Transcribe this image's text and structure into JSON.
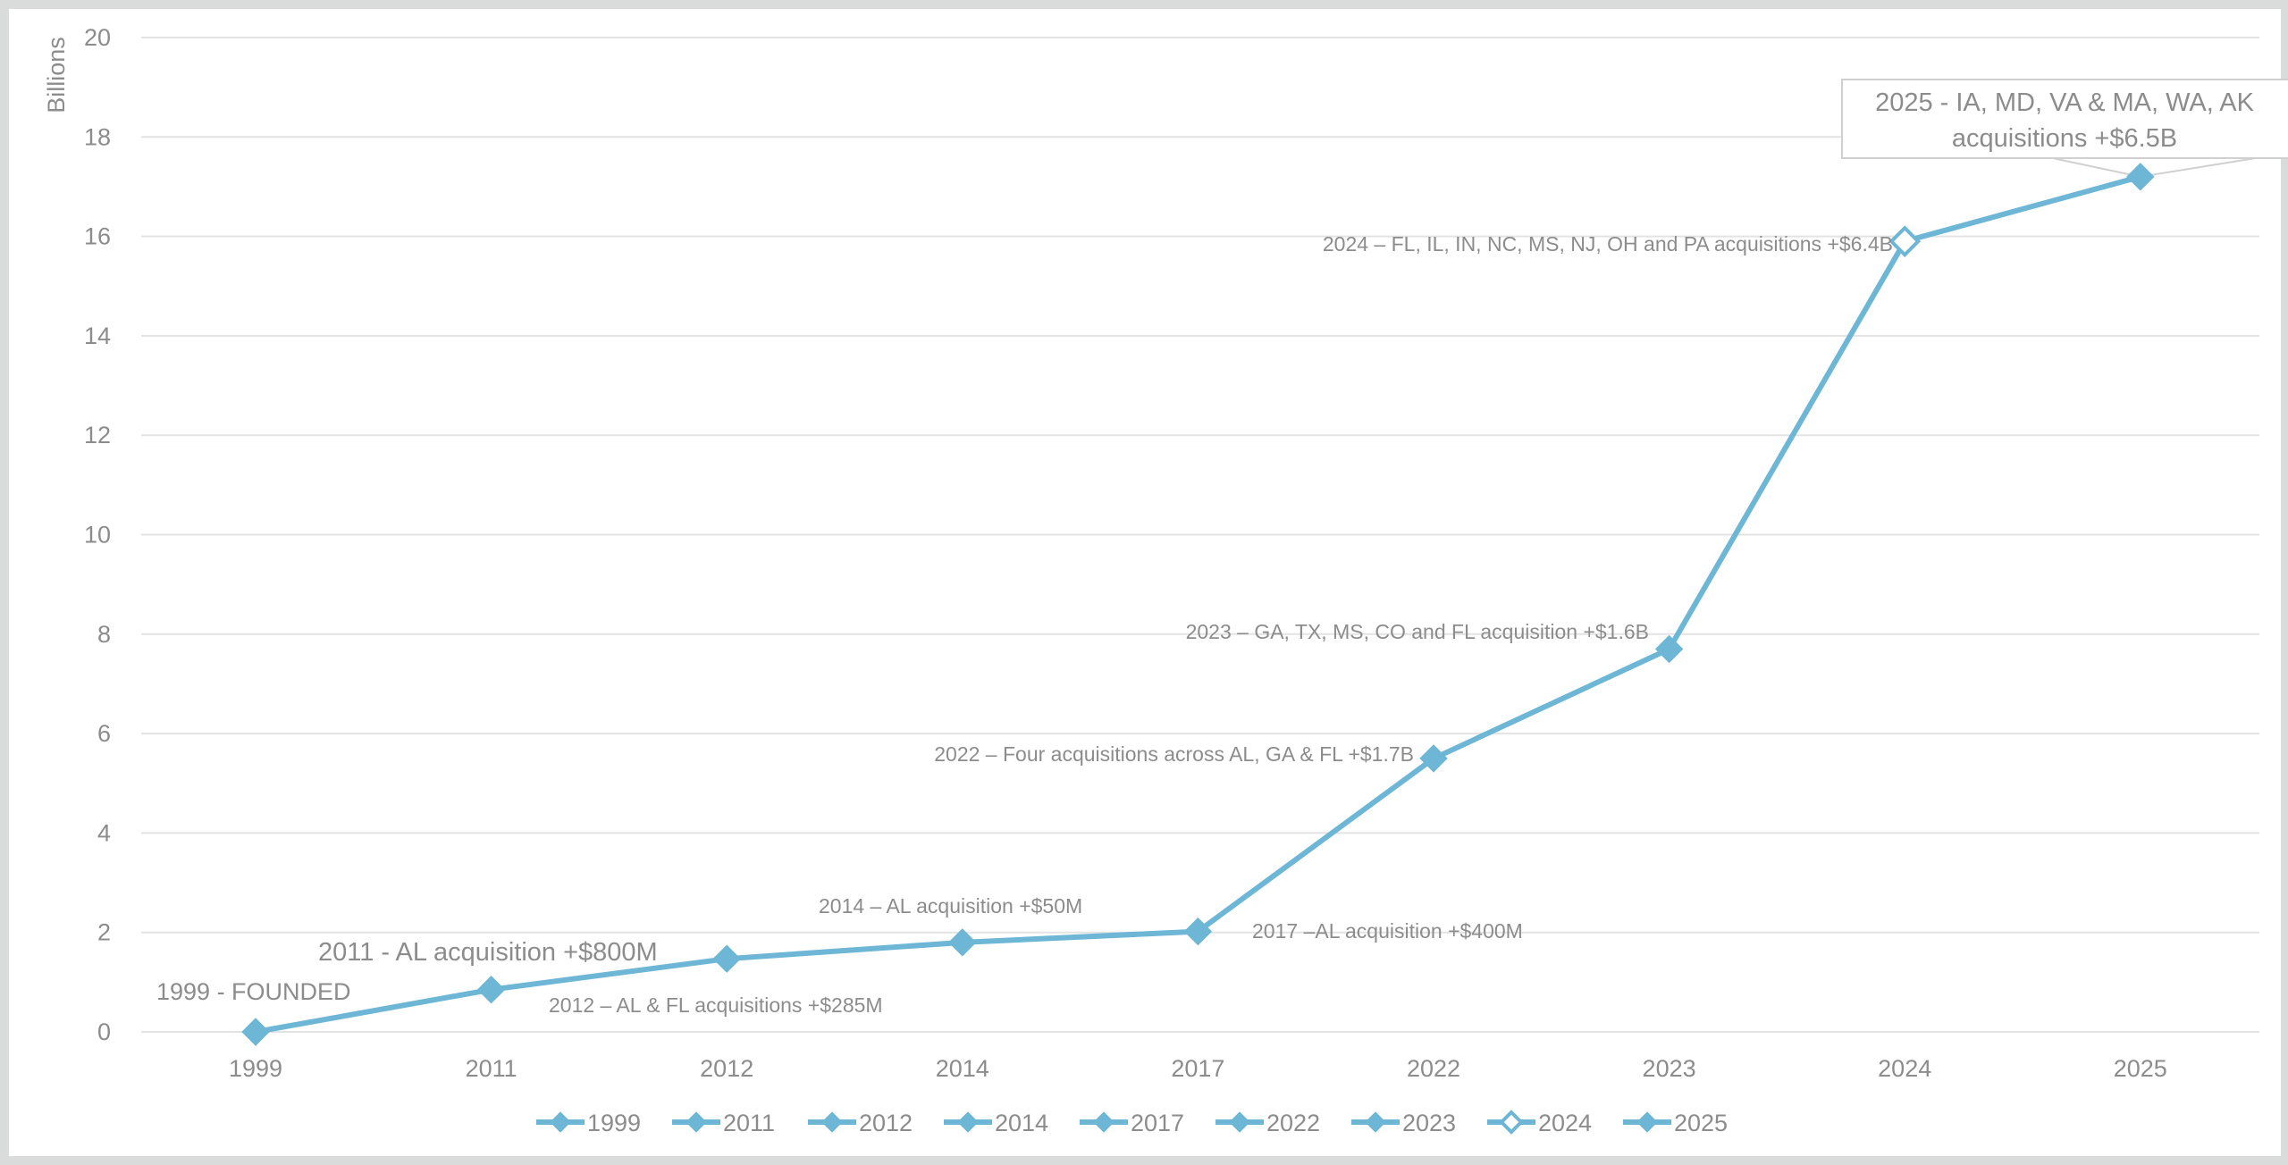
{
  "chart_data": {
    "type": "line",
    "title": "",
    "xlabel": "",
    "ylabel": "Billions",
    "ylim": [
      0,
      20
    ],
    "yticks": [
      0,
      2,
      4,
      6,
      8,
      10,
      12,
      14,
      16,
      18,
      20
    ],
    "grid": true,
    "legend_placement": "bottom",
    "categories": [
      "1999",
      "2011",
      "2012",
      "2014",
      "2017",
      "2022",
      "2023",
      "2024",
      "2025"
    ],
    "values": [
      0,
      0.85,
      1.47,
      1.8,
      2.02,
      5.5,
      7.7,
      15.9,
      17.2
    ],
    "hollow_markers": [
      "2024"
    ],
    "legend": [
      "1999",
      "2011",
      "2012",
      "2014",
      "2017",
      "2022",
      "2023",
      "2024",
      "2025"
    ],
    "annotations": [
      "1999 - FOUNDED",
      "2011 - AL acquisition +$800M",
      "2012 – AL & FL acquisitions +$285M",
      "2014 – AL acquisition +$50M",
      "2017 –AL acquisition +$400M",
      "2022 – Four acquisitions across AL, GA & FL +$1.7B",
      "2023 – GA, TX, MS, CO and FL acquisition +$1.6B",
      "2024 – FL, IL, IN, NC, MS, NJ, OH and PA acquisitions +$6.4B",
      "2025 - IA, MD, VA & MA, WA, AK",
      "acquisitions +$6.5B"
    ],
    "colors": {
      "line": "#6db6d5",
      "text": "#8c8c8c",
      "grid": "#e3e3e3"
    }
  }
}
